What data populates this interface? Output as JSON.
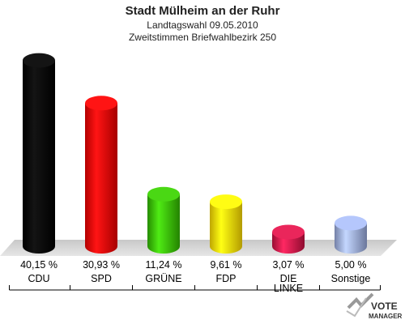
{
  "chart_data": {
    "type": "bar",
    "title": "Stadt Mülheim an der Ruhr",
    "subtitle_1": "Landtagswahl 09.05.2010",
    "subtitle_2": "Zweitstimmen Briefwahlbezirk 250",
    "categories": [
      "CDU",
      "SPD",
      "GRÜNE",
      "FDP",
      "DIE LINKE",
      "Sonstige"
    ],
    "values": [
      40.15,
      30.93,
      11.24,
      9.61,
      3.07,
      5.0
    ],
    "value_labels": [
      "40,15 %",
      "30,93 %",
      "11,24 %",
      "9,61 %",
      "3,07 %",
      "5,00 %"
    ],
    "ylim": [
      0,
      42
    ],
    "colors": [
      "#000000",
      "#ee0000",
      "#33bb00",
      "#ffdd00",
      "#cc1144",
      "#99aadd"
    ],
    "grid": false
  },
  "logo": {
    "line1": "VOTE",
    "line2": "MANAGER"
  }
}
